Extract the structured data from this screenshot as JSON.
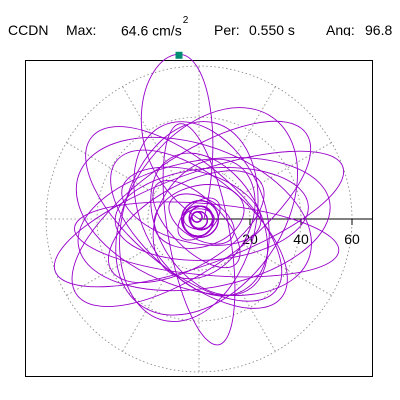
{
  "header": {
    "station": "CCDN",
    "max_label": "Max:",
    "max_value": "64.6 cm/s",
    "max_exponent": "2",
    "per_label": "Per:",
    "per_value": "0.550 s",
    "ang_label": "Ang:",
    "ang_value": "96.8"
  },
  "colors": {
    "trace": "#9900cc",
    "peak_marker": "#008c73",
    "grid": "#808080",
    "axis": "#000000"
  },
  "chart_data": {
    "type": "polar-orbit",
    "radial_ticks": [
      "20",
      "40",
      "60"
    ],
    "radial_tick_values": [
      20,
      40,
      60
    ],
    "ring_values": [
      20,
      40,
      60
    ],
    "angular_divisions_deg": 30,
    "max_radius": 70,
    "peak": {
      "amplitude": 64.6,
      "angle_deg": 96.8
    },
    "orbit_loops": [
      {
        "a": 60,
        "b": 18,
        "rot": 20,
        "cx": 0,
        "cy": 0
      },
      {
        "a": 55,
        "b": 22,
        "rot": 35,
        "cx": -3,
        "cy": 2
      },
      {
        "a": 50,
        "b": 25,
        "rot": 10,
        "cx": 2,
        "cy": -2
      },
      {
        "a": 48,
        "b": 28,
        "rot": -20,
        "cx": -2,
        "cy": 1
      },
      {
        "a": 45,
        "b": 30,
        "rot": 55,
        "cx": 3,
        "cy": 3
      },
      {
        "a": 42,
        "b": 20,
        "rot": -40,
        "cx": 0,
        "cy": -4
      },
      {
        "a": 40,
        "b": 26,
        "rot": 75,
        "cx": -4,
        "cy": -1
      },
      {
        "a": 38,
        "b": 18,
        "rot": 5,
        "cx": 5,
        "cy": 2
      },
      {
        "a": 36,
        "b": 24,
        "rot": -65,
        "cx": 1,
        "cy": 4
      },
      {
        "a": 34,
        "b": 16,
        "rot": 30,
        "cx": -5,
        "cy": -3
      },
      {
        "a": 44,
        "b": 12,
        "rot": 100,
        "cx": 0,
        "cy": -6
      },
      {
        "a": 30,
        "b": 20,
        "rot": 120,
        "cx": 4,
        "cy": -2
      },
      {
        "a": 28,
        "b": 14,
        "rot": -15,
        "cx": -3,
        "cy": 5
      },
      {
        "a": 25,
        "b": 18,
        "rot": 60,
        "cx": 2,
        "cy": 0
      },
      {
        "a": 22,
        "b": 10,
        "rot": -45,
        "cx": -1,
        "cy": -2
      },
      {
        "a": 18,
        "b": 12,
        "rot": 15,
        "cx": 0,
        "cy": 1
      },
      {
        "a": 14,
        "b": 8,
        "rot": -30,
        "cx": 1,
        "cy": 0
      },
      {
        "a": 10,
        "b": 6,
        "rot": 45,
        "cx": 0,
        "cy": 0
      },
      {
        "a": 6,
        "b": 4,
        "rot": 0,
        "cx": 0,
        "cy": 0
      },
      {
        "a": 52,
        "b": 14,
        "rot": -5,
        "cx": 3,
        "cy": -8
      },
      {
        "a": 47,
        "b": 21,
        "rot": 140,
        "cx": -6,
        "cy": 2
      }
    ],
    "peak_lobe": {
      "top": 64.6,
      "half_width": 16
    }
  }
}
